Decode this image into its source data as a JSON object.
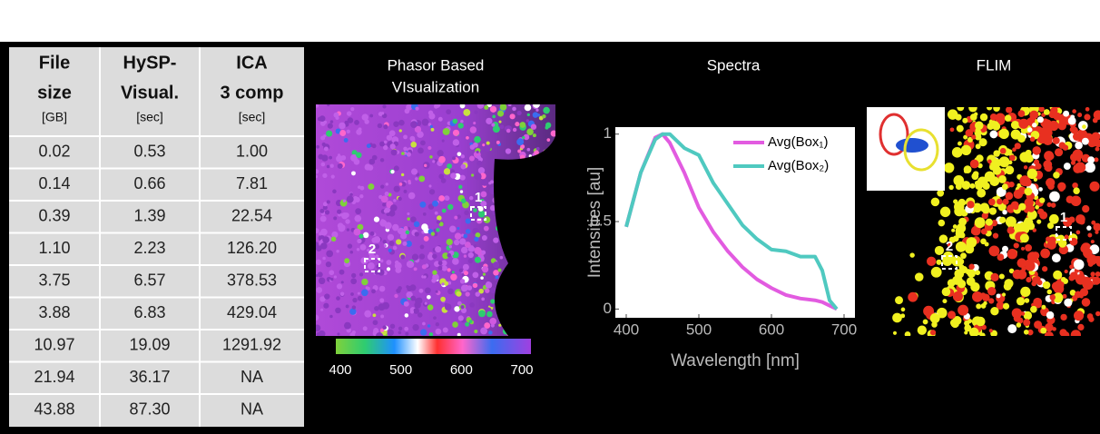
{
  "table": {
    "headers": [
      [
        "File",
        "size",
        "[GB]"
      ],
      [
        "HySP-",
        "Visual.",
        "[sec]"
      ],
      [
        "ICA",
        "3 comp",
        "[sec]"
      ]
    ],
    "rows": [
      [
        "0.02",
        "0.53",
        "1.00"
      ],
      [
        "0.14",
        "0.66",
        "7.81"
      ],
      [
        "0.39",
        "1.39",
        "22.54"
      ],
      [
        "1.10",
        "2.23",
        "126.20"
      ],
      [
        "3.75",
        "6.57",
        "378.53"
      ],
      [
        "3.88",
        "6.83",
        "429.04"
      ],
      [
        "10.97",
        "19.09",
        "1291.92"
      ],
      [
        "21.94",
        "36.17",
        "NA"
      ],
      [
        "43.88",
        "87.30",
        "NA"
      ]
    ]
  },
  "phasor": {
    "title": [
      "Phasor Based",
      "VIsualization"
    ],
    "colorbar_ticks": [
      400,
      500,
      600,
      700
    ],
    "box_labels": [
      "1",
      "2"
    ]
  },
  "chart_data": {
    "type": "line",
    "title": "Spectra",
    "x_label": "Wavelength [nm]",
    "y_label": "Intensities [au]",
    "x": [
      400,
      420,
      440,
      450,
      460,
      480,
      500,
      520,
      540,
      560,
      580,
      600,
      620,
      640,
      660,
      670,
      680,
      690
    ],
    "series": [
      {
        "name": "Avg(Box₁)",
        "color": "#e25be0",
        "values": [
          0.47,
          0.78,
          0.98,
          1.0,
          0.95,
          0.78,
          0.58,
          0.44,
          0.33,
          0.24,
          0.17,
          0.12,
          0.08,
          0.06,
          0.05,
          0.04,
          0.02,
          0
        ]
      },
      {
        "name": "Avg(Box₂)",
        "color": "#4fc9c0",
        "values": [
          0.47,
          0.78,
          0.97,
          1.0,
          1.0,
          0.92,
          0.88,
          0.72,
          0.6,
          0.48,
          0.4,
          0.34,
          0.33,
          0.3,
          0.3,
          0.22,
          0.05,
          0
        ]
      }
    ],
    "xlim": [
      385,
      715
    ],
    "ylim": [
      -0.05,
      1.04
    ],
    "xticks": [
      400,
      500,
      600,
      700
    ],
    "yticks": [
      0,
      0.5,
      1
    ]
  },
  "flim": {
    "title": "FLIM",
    "box_labels": [
      "1",
      "2"
    ]
  }
}
